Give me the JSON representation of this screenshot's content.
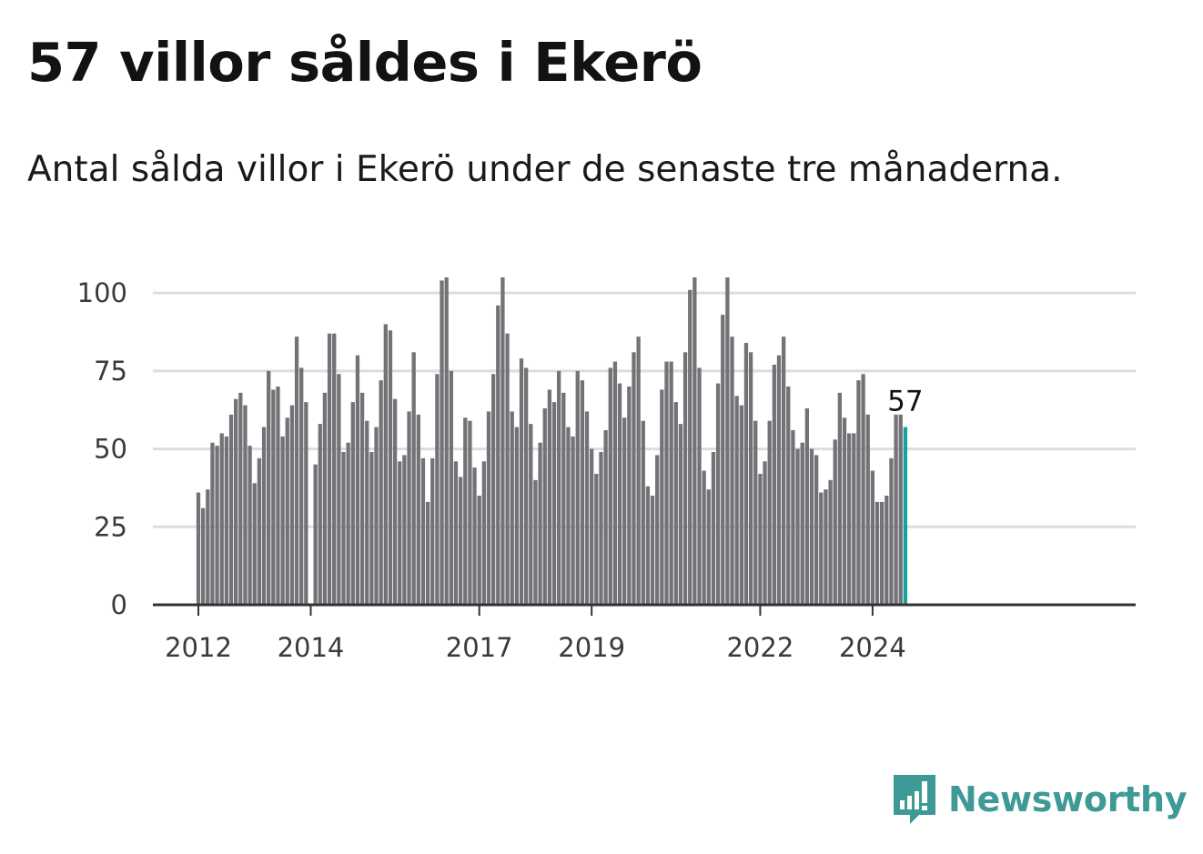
{
  "header": {
    "title": "57 villor såldes i Ekerö",
    "subtitle": "Antal sålda villor i Ekerö under de senaste tre månaderna."
  },
  "brand": {
    "name": "Newsworthy",
    "icon": "newsworthy-chart-bubble-icon",
    "color": "#3d9a96"
  },
  "colors": {
    "bar": "#737277",
    "highlight": "#16a39c",
    "grid": "#dddddd",
    "axis": "#333333"
  },
  "chart_data": {
    "type": "bar",
    "title": "57 villor såldes i Ekerö",
    "subtitle": "Antal sålda villor i Ekerö under de senaste tre månaderna.",
    "xlabel": "",
    "ylabel": "",
    "ylim": [
      0,
      105
    ],
    "yticks": [
      0,
      25,
      50,
      75,
      100
    ],
    "year_ticks": [
      "2012",
      "2014",
      "2017",
      "2019",
      "2022",
      "2024"
    ],
    "highlight_label": "57",
    "values": [
      36,
      31,
      37,
      52,
      51,
      55,
      54,
      61,
      66,
      68,
      64,
      51,
      39,
      47,
      57,
      75,
      69,
      70,
      54,
      60,
      64,
      86,
      76,
      65,
      null,
      45,
      58,
      68,
      87,
      87,
      74,
      49,
      52,
      65,
      80,
      68,
      59,
      49,
      57,
      72,
      90,
      88,
      66,
      46,
      48,
      62,
      81,
      61,
      47,
      33,
      47,
      74,
      104,
      105,
      75,
      46,
      41,
      60,
      59,
      44,
      35,
      46,
      62,
      74,
      96,
      105,
      87,
      62,
      57,
      79,
      76,
      58,
      40,
      52,
      63,
      69,
      65,
      75,
      68,
      57,
      54,
      75,
      72,
      62,
      50,
      42,
      49,
      56,
      76,
      78,
      71,
      60,
      70,
      81,
      86,
      59,
      38,
      35,
      48,
      69,
      78,
      78,
      65,
      58,
      81,
      101,
      105,
      76,
      43,
      37,
      49,
      71,
      93,
      105,
      86,
      67,
      64,
      84,
      81,
      59,
      42,
      46,
      59,
      77,
      80,
      86,
      70,
      56,
      50,
      52,
      63,
      50,
      48,
      36,
      37,
      40,
      53,
      68,
      60,
      55,
      55,
      72,
      74,
      61,
      43,
      33,
      33,
      35,
      47,
      61,
      61,
      57
    ]
  }
}
